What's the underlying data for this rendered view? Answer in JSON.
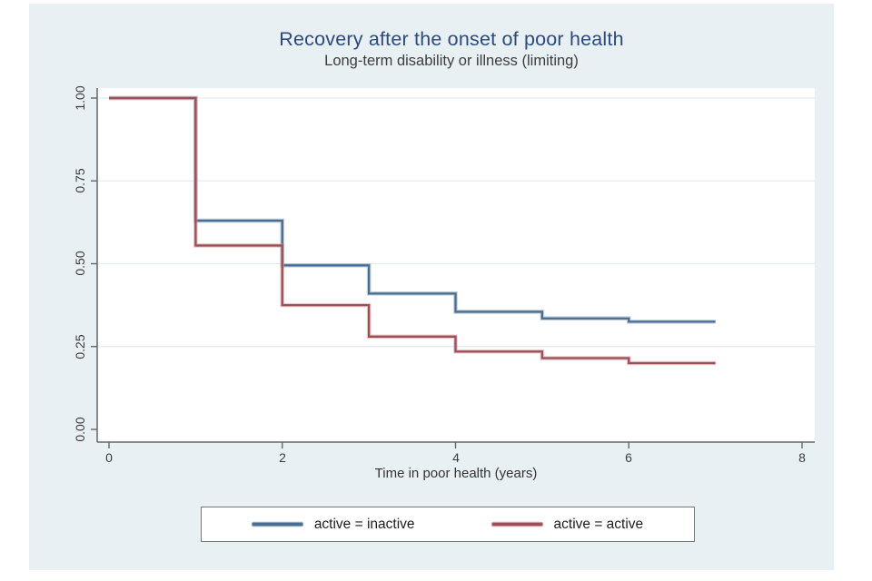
{
  "title": "Recovery after the onset of poor health",
  "subtitle": "Long-term disability or illness (limiting)",
  "colors": {
    "canvas_bg": "#e9f0f3",
    "plot_bg": "#ffffff",
    "grid": "#e1edf0",
    "axis": "#666666",
    "title_text": "#2b4a7d",
    "tick_text": "#3c3c3c"
  },
  "chart_data": {
    "type": "line",
    "subtype": "kaplan-meier-step",
    "title": "Recovery after the onset of poor health",
    "subtitle": "Long-term disability or illness (limiting)",
    "xlabel": "Time in poor health (years)",
    "ylabel": "",
    "xlim": [
      0,
      8
    ],
    "ylim": [
      0,
      1
    ],
    "xticks": [
      0,
      2,
      4,
      6,
      8
    ],
    "xtick_labels": [
      "0",
      "2",
      "4",
      "6",
      "8"
    ],
    "yticks": [
      0,
      0.25,
      0.5,
      0.75,
      1
    ],
    "ytick_labels": [
      "0.00",
      "0.25",
      "0.50",
      "0.75",
      "1.00"
    ],
    "grid": "horizontal-gridlines-on",
    "legend_position": "bottom",
    "series": [
      {
        "name": "active = inactive",
        "color": "#4a6d92",
        "halo": "#8fa9c0",
        "step_times": [
          0,
          1,
          2,
          3,
          4,
          5,
          6
        ],
        "levels": [
          1.0,
          0.63,
          0.495,
          0.41,
          0.355,
          0.335,
          0.325
        ],
        "end_time": 7
      },
      {
        "name": "active = active",
        "color": "#9d4f57",
        "halo": "#d49aa0",
        "step_times": [
          0,
          1,
          2,
          3,
          4,
          5,
          6
        ],
        "levels": [
          1.0,
          0.555,
          0.375,
          0.28,
          0.235,
          0.215,
          0.2
        ],
        "end_time": 7
      }
    ]
  },
  "legend": {
    "entries": [
      {
        "label": "active = inactive"
      },
      {
        "label": "active = active"
      }
    ]
  }
}
